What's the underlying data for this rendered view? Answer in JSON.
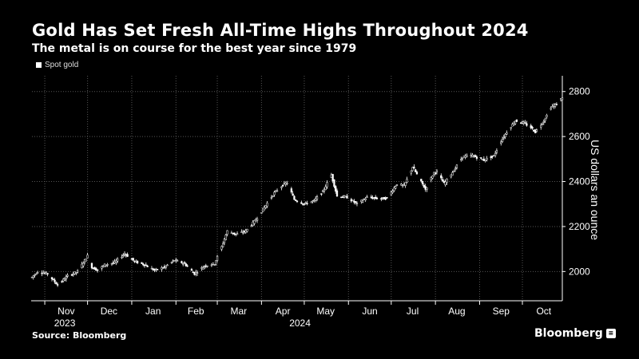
{
  "header": {
    "title": "Gold Has Set Fresh All-Time Highs Throughout 2024",
    "subtitle": "The metal is on course for the best year since 1979"
  },
  "footer": {
    "source": "Source: Bloomberg",
    "brand": "Bloomberg",
    "brand_icon": "bloomberg-terminal-icon"
  },
  "colors": {
    "background": "#000000",
    "series": "#ffffff",
    "grid": "#555555"
  },
  "chart_data": {
    "type": "candlestick",
    "title": "Gold Has Set Fresh All-Time Highs Throughout 2024",
    "subtitle": "The metal is on course for the best year since 1979",
    "ylabel": "US dollars an ounce",
    "xlabel": "",
    "ylim": [
      1870,
      2870
    ],
    "y_axis_side": "right",
    "yticks": [
      2000,
      2200,
      2400,
      2600,
      2800
    ],
    "xlim": [
      "2023-10-23",
      "2024-10-29"
    ],
    "x_month_ticks": [
      {
        "label": "Nov",
        "date": "2023-11-01"
      },
      {
        "label": "Dec",
        "date": "2023-12-01"
      },
      {
        "label": "Jan",
        "date": "2024-01-01"
      },
      {
        "label": "Feb",
        "date": "2024-02-01"
      },
      {
        "label": "Mar",
        "date": "2024-03-01"
      },
      {
        "label": "Apr",
        "date": "2024-04-01"
      },
      {
        "label": "May",
        "date": "2024-05-01"
      },
      {
        "label": "Jun",
        "date": "2024-06-01"
      },
      {
        "label": "Jul",
        "date": "2024-07-01"
      },
      {
        "label": "Aug",
        "date": "2024-08-01"
      },
      {
        "label": "Sep",
        "date": "2024-09-01"
      },
      {
        "label": "Oct",
        "date": "2024-10-01"
      }
    ],
    "x_year_labels": [
      {
        "label": "2023",
        "date": "2023-11-15"
      },
      {
        "label": "2024",
        "date": "2024-04-28"
      }
    ],
    "grid": true,
    "legend": "top-left",
    "legend_items": [
      "Spot gold"
    ],
    "series": [
      {
        "name": "Spot gold",
        "points": [
          [
            "2023-10-23",
            1975
          ],
          [
            "2023-10-27",
            2000
          ],
          [
            "2023-11-03",
            1990
          ],
          [
            "2023-11-10",
            1940
          ],
          [
            "2023-11-17",
            1980
          ],
          [
            "2023-11-24",
            2000
          ],
          [
            "2023-11-28",
            2040
          ],
          [
            "2023-12-01",
            2070
          ],
          [
            "2023-12-04",
            2020
          ],
          [
            "2023-12-08",
            2005
          ],
          [
            "2023-12-13",
            2030
          ],
          [
            "2023-12-20",
            2040
          ],
          [
            "2023-12-27",
            2080
          ],
          [
            "2024-01-03",
            2045
          ],
          [
            "2024-01-10",
            2030
          ],
          [
            "2024-01-17",
            2005
          ],
          [
            "2024-01-24",
            2020
          ],
          [
            "2024-01-31",
            2050
          ],
          [
            "2024-02-07",
            2035
          ],
          [
            "2024-02-14",
            1990
          ],
          [
            "2024-02-21",
            2025
          ],
          [
            "2024-02-28",
            2035
          ],
          [
            "2024-03-04",
            2110
          ],
          [
            "2024-03-08",
            2180
          ],
          [
            "2024-03-14",
            2165
          ],
          [
            "2024-03-21",
            2180
          ],
          [
            "2024-03-28",
            2230
          ],
          [
            "2024-04-04",
            2295
          ],
          [
            "2024-04-10",
            2350
          ],
          [
            "2024-04-16",
            2385
          ],
          [
            "2024-04-19",
            2395
          ],
          [
            "2024-04-24",
            2320
          ],
          [
            "2024-05-01",
            2300
          ],
          [
            "2024-05-08",
            2315
          ],
          [
            "2024-05-14",
            2355
          ],
          [
            "2024-05-20",
            2430
          ],
          [
            "2024-05-24",
            2335
          ],
          [
            "2024-05-31",
            2330
          ],
          [
            "2024-06-07",
            2300
          ],
          [
            "2024-06-14",
            2330
          ],
          [
            "2024-06-21",
            2325
          ],
          [
            "2024-06-28",
            2325
          ],
          [
            "2024-07-05",
            2390
          ],
          [
            "2024-07-10",
            2380
          ],
          [
            "2024-07-16",
            2465
          ],
          [
            "2024-07-25",
            2365
          ],
          [
            "2024-07-31",
            2440
          ],
          [
            "2024-08-02",
            2445
          ],
          [
            "2024-08-07",
            2390
          ],
          [
            "2024-08-14",
            2450
          ],
          [
            "2024-08-20",
            2510
          ],
          [
            "2024-08-27",
            2515
          ],
          [
            "2024-09-04",
            2495
          ],
          [
            "2024-09-11",
            2515
          ],
          [
            "2024-09-16",
            2580
          ],
          [
            "2024-09-20",
            2620
          ],
          [
            "2024-09-26",
            2670
          ],
          [
            "2024-10-02",
            2660
          ],
          [
            "2024-10-07",
            2640
          ],
          [
            "2024-10-10",
            2620
          ],
          [
            "2024-10-16",
            2670
          ],
          [
            "2024-10-21",
            2730
          ],
          [
            "2024-10-25",
            2745
          ],
          [
            "2024-10-29",
            2775
          ]
        ]
      }
    ]
  }
}
